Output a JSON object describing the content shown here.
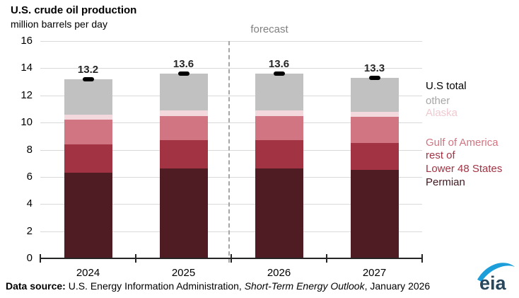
{
  "title": "U.S. crude oil production",
  "subtitle": "million barrels per day",
  "forecast_label": "forecast",
  "source": {
    "prefix": "Data source: ",
    "agency": "U.S. Energy Information Administration, ",
    "publication": "Short-Term Energy Outlook",
    "suffix": ", January 2026"
  },
  "logo": {
    "text": "eia"
  },
  "colors": {
    "permian": "#4f1c24",
    "rest_of_lower_48": "#a23343",
    "gulf_of_america": "#d27582",
    "alaska": "#f3d8dd",
    "other": "#c1c1c1",
    "us_total_marker": "#000000",
    "forecast_text": "#808080",
    "gridline": "#d9d9d9",
    "axis": "#262626",
    "dashed_line": "#a6a6a6",
    "logo_text": "#28475c",
    "logo_swoosh": "#1b9ed9"
  },
  "chart_data": {
    "type": "bar",
    "stacked": true,
    "title": "U.S. crude oil production",
    "ylabel": "million barrels per day",
    "xlabel": "",
    "ylim": [
      0,
      16
    ],
    "yticks": [
      0,
      2,
      4,
      6,
      8,
      10,
      12,
      14,
      16
    ],
    "grid": true,
    "categories": [
      "2024",
      "2025",
      "2026",
      "2027"
    ],
    "series": [
      {
        "name": "Permian",
        "color": "#4f1c24",
        "values": [
          6.3,
          6.6,
          6.6,
          6.5
        ]
      },
      {
        "name": "rest of Lower 48 States",
        "color": "#a23343",
        "values": [
          2.1,
          2.1,
          2.1,
          2.0
        ]
      },
      {
        "name": "Gulf of America",
        "color": "#d27582",
        "values": [
          1.8,
          1.8,
          1.8,
          1.9
        ]
      },
      {
        "name": "Alaska",
        "color": "#f3d8dd",
        "values": [
          0.4,
          0.4,
          0.4,
          0.4
        ]
      },
      {
        "name": "other",
        "color": "#c1c1c1",
        "values": [
          2.6,
          2.7,
          2.7,
          2.5
        ]
      }
    ],
    "totals": [
      13.2,
      13.6,
      13.6,
      13.3
    ],
    "total_series_name": "U.S total",
    "forecast_start_category": "2026",
    "legend_position": "right",
    "legend": [
      {
        "label": "U.S total",
        "color": "#000000"
      },
      {
        "label": "other",
        "color": "#a6a6a6"
      },
      {
        "label": "Alaska",
        "color": "#f0c9d1"
      },
      {
        "label": "Gulf of America",
        "color": "#d27582"
      },
      {
        "label": "rest of\nLower 48 States",
        "color": "#a23343"
      },
      {
        "label": "Permian",
        "color": "#421820"
      }
    ]
  }
}
